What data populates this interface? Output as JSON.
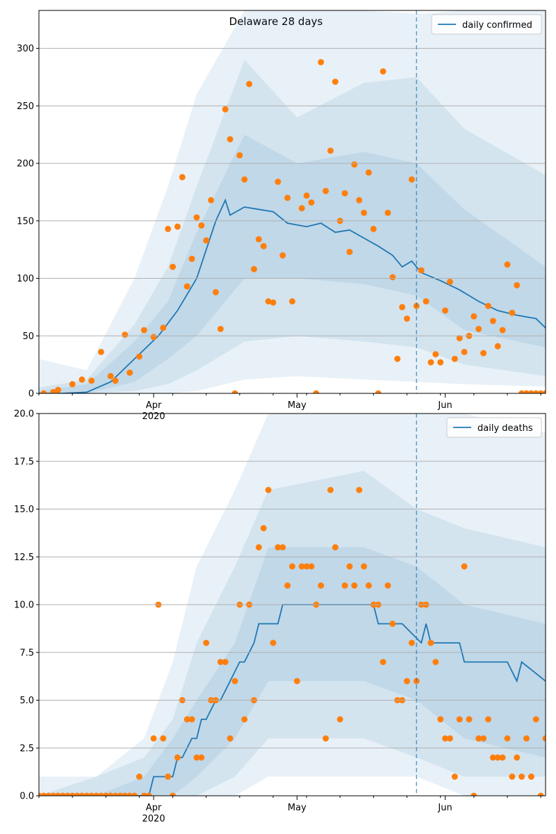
{
  "figure": {
    "title": "Delaware 28 days",
    "colors": {
      "line": "#1f77b4",
      "points": "#ff7f0e",
      "band": "#1f77b4",
      "grid": "#b0b0b0",
      "vline": "#1f77b4"
    }
  },
  "chart_data": [
    {
      "type": "line",
      "title": "Delaware 28 days",
      "series_name": "daily confirmed",
      "legend": "top-right",
      "grid": "horizontal",
      "x_range": [
        "2020-03-08",
        "2020-06-22"
      ],
      "ylim": [
        0,
        333
      ],
      "yticks": [
        0,
        50,
        100,
        150,
        200,
        250,
        300
      ],
      "ytick_labels": [
        "0",
        "50",
        "100",
        "150",
        "200",
        "250",
        "300"
      ],
      "xticks": [
        {
          "date": "2020-04-01",
          "label": "Apr",
          "sublabel": "2020"
        },
        {
          "date": "2020-05-01",
          "label": "May",
          "sublabel": ""
        },
        {
          "date": "2020-06-01",
          "label": "Jun",
          "sublabel": ""
        }
      ],
      "forecast_start": "2020-05-26",
      "line": {
        "x": [
          "2020-03-08",
          "2020-03-13",
          "2020-03-18",
          "2020-03-23",
          "2020-03-28",
          "2020-04-02",
          "2020-04-06",
          "2020-04-10",
          "2020-04-14",
          "2020-04-16",
          "2020-04-17",
          "2020-04-20",
          "2020-04-23",
          "2020-04-26",
          "2020-04-29",
          "2020-05-03",
          "2020-05-06",
          "2020-05-09",
          "2020-05-12",
          "2020-05-15",
          "2020-05-18",
          "2020-05-21",
          "2020-05-23",
          "2020-05-25",
          "2020-05-27",
          "2020-05-31",
          "2020-06-04",
          "2020-06-08",
          "2020-06-12",
          "2020-06-16",
          "2020-06-20",
          "2020-06-22"
        ],
        "y": [
          0,
          0,
          1,
          10,
          30,
          50,
          72,
          100,
          150,
          168,
          155,
          162,
          160,
          158,
          148,
          145,
          148,
          140,
          142,
          135,
          128,
          120,
          110,
          115,
          105,
          98,
          90,
          80,
          72,
          68,
          65,
          57
        ]
      },
      "bands": [
        {
          "level": "outer",
          "x": [
            "2020-03-08",
            "2020-03-18",
            "2020-03-28",
            "2020-04-04",
            "2020-04-10",
            "2020-04-20",
            "2020-05-01",
            "2020-05-15",
            "2020-05-26",
            "2020-06-05",
            "2020-06-22"
          ],
          "low": [
            0,
            0,
            0,
            0,
            2,
            12,
            15,
            12,
            10,
            8,
            6
          ],
          "high": [
            30,
            20,
            100,
            180,
            260,
            340,
            340,
            340,
            330,
            340,
            340
          ]
        },
        {
          "level": "middle",
          "x": [
            "2020-03-08",
            "2020-03-18",
            "2020-03-28",
            "2020-04-04",
            "2020-04-10",
            "2020-04-20",
            "2020-05-01",
            "2020-05-15",
            "2020-05-26",
            "2020-06-05",
            "2020-06-22"
          ],
          "low": [
            0,
            0,
            2,
            8,
            20,
            45,
            50,
            45,
            40,
            25,
            15
          ],
          "high": [
            5,
            12,
            60,
            110,
            180,
            290,
            240,
            270,
            275,
            230,
            190
          ]
        },
        {
          "level": "inner",
          "x": [
            "2020-03-08",
            "2020-03-18",
            "2020-03-28",
            "2020-04-04",
            "2020-04-10",
            "2020-04-20",
            "2020-05-01",
            "2020-05-15",
            "2020-05-26",
            "2020-06-05",
            "2020-06-22"
          ],
          "low": [
            0,
            0,
            10,
            30,
            50,
            100,
            100,
            95,
            85,
            55,
            40
          ],
          "high": [
            2,
            8,
            45,
            80,
            140,
            225,
            200,
            210,
            200,
            160,
            110
          ]
        }
      ],
      "observed": {
        "x": [
          "2020-03-09",
          "2020-03-11",
          "2020-03-12",
          "2020-03-15",
          "2020-03-17",
          "2020-03-19",
          "2020-03-21",
          "2020-03-23",
          "2020-03-24",
          "2020-03-26",
          "2020-03-27",
          "2020-03-29",
          "2020-03-30",
          "2020-04-01",
          "2020-04-03",
          "2020-04-04",
          "2020-04-05",
          "2020-04-06",
          "2020-04-07",
          "2020-04-08",
          "2020-04-09",
          "2020-04-10",
          "2020-04-11",
          "2020-04-12",
          "2020-04-13",
          "2020-04-14",
          "2020-04-15",
          "2020-04-16",
          "2020-04-17",
          "2020-04-18",
          "2020-04-19",
          "2020-04-20",
          "2020-04-21",
          "2020-04-22",
          "2020-04-23",
          "2020-04-24",
          "2020-04-25",
          "2020-04-26",
          "2020-04-27",
          "2020-04-28",
          "2020-04-29",
          "2020-04-30",
          "2020-05-02",
          "2020-05-03",
          "2020-05-04",
          "2020-05-05",
          "2020-05-06",
          "2020-05-07",
          "2020-05-08",
          "2020-05-09",
          "2020-05-10",
          "2020-05-11",
          "2020-05-12",
          "2020-05-13",
          "2020-05-14",
          "2020-05-15",
          "2020-05-16",
          "2020-05-17",
          "2020-05-18",
          "2020-05-19",
          "2020-05-20",
          "2020-05-21",
          "2020-05-22",
          "2020-05-23",
          "2020-05-24",
          "2020-05-25",
          "2020-05-26",
          "2020-05-27",
          "2020-05-28",
          "2020-05-29",
          "2020-05-30",
          "2020-05-31",
          "2020-06-01",
          "2020-06-02",
          "2020-06-03",
          "2020-06-04",
          "2020-06-05",
          "2020-06-06",
          "2020-06-07",
          "2020-06-08",
          "2020-06-09",
          "2020-06-10",
          "2020-06-11",
          "2020-06-12",
          "2020-06-13",
          "2020-06-14",
          "2020-06-15",
          "2020-06-16",
          "2020-06-17",
          "2020-06-18",
          "2020-06-19",
          "2020-06-20",
          "2020-06-21",
          "2020-06-22"
        ],
        "y": [
          0,
          1,
          3,
          8,
          12,
          11,
          36,
          15,
          11,
          51,
          18,
          32,
          55,
          49,
          57,
          143,
          110,
          145,
          188,
          93,
          117,
          153,
          146,
          133,
          168,
          88,
          56,
          247,
          221,
          0,
          207,
          186,
          269,
          108,
          134,
          128,
          80,
          79,
          184,
          120,
          170,
          80,
          161,
          172,
          166,
          0,
          288,
          176,
          211,
          271,
          150,
          174,
          123,
          199,
          168,
          157,
          192,
          143,
          0,
          280,
          157,
          101,
          30,
          75,
          65,
          186,
          76,
          107,
          80,
          27,
          34,
          27,
          72,
          97,
          30,
          48,
          36,
          50,
          67,
          56,
          35,
          76,
          63,
          41,
          55,
          112,
          70,
          94,
          0,
          0,
          0,
          0,
          0,
          0
        ]
      }
    },
    {
      "type": "line",
      "title": "",
      "series_name": "daily deaths",
      "legend": "top-right",
      "grid": "horizontal",
      "x_range": [
        "2020-03-08",
        "2020-06-22"
      ],
      "ylim": [
        0,
        20
      ],
      "yticks": [
        0,
        2.5,
        5,
        7.5,
        10,
        12.5,
        15,
        17.5,
        20
      ],
      "ytick_labels": [
        "0.0",
        "2.5",
        "5.0",
        "7.5",
        "10.0",
        "12.5",
        "15.0",
        "17.5",
        "20.0"
      ],
      "xticks": [
        {
          "date": "2020-04-01",
          "label": "Apr",
          "sublabel": "2020"
        },
        {
          "date": "2020-05-01",
          "label": "May",
          "sublabel": ""
        },
        {
          "date": "2020-06-01",
          "label": "Jun",
          "sublabel": ""
        }
      ],
      "forecast_start": "2020-05-26",
      "line": {
        "x": [
          "2020-03-08",
          "2020-03-31",
          "2020-04-01",
          "2020-04-05",
          "2020-04-06",
          "2020-04-07",
          "2020-04-09",
          "2020-04-10",
          "2020-04-11",
          "2020-04-12",
          "2020-04-14",
          "2020-04-15",
          "2020-04-17",
          "2020-04-19",
          "2020-04-20",
          "2020-04-22",
          "2020-04-23",
          "2020-04-27",
          "2020-04-28",
          "2020-05-17",
          "2020-05-18",
          "2020-05-23",
          "2020-05-27",
          "2020-05-28",
          "2020-05-29",
          "2020-05-30",
          "2020-06-01",
          "2020-06-04",
          "2020-06-05",
          "2020-06-14",
          "2020-06-16",
          "2020-06-17",
          "2020-06-22"
        ],
        "y": [
          0,
          0,
          1,
          1,
          2,
          2,
          3,
          3,
          4,
          4,
          5,
          5,
          6,
          7,
          7,
          8,
          9,
          9,
          10,
          10,
          9,
          9,
          8,
          9,
          8,
          8,
          8,
          8,
          7,
          7,
          6,
          7,
          6
        ]
      },
      "bands": [
        {
          "level": "outer",
          "x": [
            "2020-03-08",
            "2020-03-20",
            "2020-03-30",
            "2020-04-05",
            "2020-04-10",
            "2020-04-18",
            "2020-04-25",
            "2020-05-15",
            "2020-05-26",
            "2020-06-05",
            "2020-06-22"
          ],
          "low": [
            0,
            0,
            0,
            0,
            0,
            0,
            1,
            1,
            1,
            0,
            0
          ],
          "high": [
            1,
            1,
            3,
            7,
            12,
            16,
            20,
            21,
            20,
            20,
            19
          ]
        },
        {
          "level": "middle",
          "x": [
            "2020-03-08",
            "2020-03-20",
            "2020-03-30",
            "2020-04-05",
            "2020-04-10",
            "2020-04-18",
            "2020-04-25",
            "2020-05-15",
            "2020-05-26",
            "2020-06-05",
            "2020-06-22"
          ],
          "low": [
            0,
            0,
            0,
            0,
            0,
            1,
            3,
            3,
            2,
            1,
            1
          ],
          "high": [
            0,
            1,
            2,
            4,
            8,
            12,
            16,
            17,
            15,
            14,
            13
          ]
        },
        {
          "level": "inner",
          "x": [
            "2020-03-08",
            "2020-03-20",
            "2020-03-30",
            "2020-04-05",
            "2020-04-10",
            "2020-04-18",
            "2020-04-25",
            "2020-05-15",
            "2020-05-26",
            "2020-06-05",
            "2020-06-22"
          ],
          "low": [
            0,
            0,
            0,
            0,
            1,
            3,
            6,
            6,
            5,
            3,
            2
          ],
          "high": [
            0,
            0,
            1,
            3,
            5,
            8,
            13,
            13,
            12,
            10,
            9
          ]
        }
      ],
      "observed": {
        "x": [
          "2020-03-08",
          "2020-03-09",
          "2020-03-10",
          "2020-03-11",
          "2020-03-12",
          "2020-03-13",
          "2020-03-14",
          "2020-03-15",
          "2020-03-16",
          "2020-03-17",
          "2020-03-18",
          "2020-03-19",
          "2020-03-20",
          "2020-03-21",
          "2020-03-22",
          "2020-03-23",
          "2020-03-24",
          "2020-03-25",
          "2020-03-26",
          "2020-03-27",
          "2020-03-28",
          "2020-03-29",
          "2020-03-30",
          "2020-03-31",
          "2020-04-01",
          "2020-04-02",
          "2020-04-03",
          "2020-04-04",
          "2020-04-05",
          "2020-04-06",
          "2020-04-07",
          "2020-04-08",
          "2020-04-09",
          "2020-04-10",
          "2020-04-11",
          "2020-04-12",
          "2020-04-13",
          "2020-04-14",
          "2020-04-15",
          "2020-04-16",
          "2020-04-17",
          "2020-04-18",
          "2020-04-19",
          "2020-04-20",
          "2020-04-21",
          "2020-04-22",
          "2020-04-23",
          "2020-04-24",
          "2020-04-25",
          "2020-04-26",
          "2020-04-27",
          "2020-04-28",
          "2020-04-29",
          "2020-04-30",
          "2020-05-01",
          "2020-05-02",
          "2020-05-03",
          "2020-05-04",
          "2020-05-05",
          "2020-05-06",
          "2020-05-07",
          "2020-05-08",
          "2020-05-09",
          "2020-05-10",
          "2020-05-11",
          "2020-05-12",
          "2020-05-13",
          "2020-05-14",
          "2020-05-15",
          "2020-05-16",
          "2020-05-17",
          "2020-05-18",
          "2020-05-19",
          "2020-05-20",
          "2020-05-21",
          "2020-05-22",
          "2020-05-23",
          "2020-05-24",
          "2020-05-25",
          "2020-05-26",
          "2020-05-27",
          "2020-05-28",
          "2020-05-29",
          "2020-05-30",
          "2020-05-31",
          "2020-06-01",
          "2020-06-02",
          "2020-06-03",
          "2020-06-04",
          "2020-06-05",
          "2020-06-06",
          "2020-06-07",
          "2020-06-08",
          "2020-06-09",
          "2020-06-10",
          "2020-06-11",
          "2020-06-12",
          "2020-06-13",
          "2020-06-14",
          "2020-06-15",
          "2020-06-16",
          "2020-06-17",
          "2020-06-18",
          "2020-06-19",
          "2020-06-20",
          "2020-06-21",
          "2020-06-22"
        ],
        "y": [
          0,
          0,
          0,
          0,
          0,
          0,
          0,
          0,
          0,
          0,
          0,
          0,
          0,
          0,
          0,
          0,
          0,
          0,
          0,
          0,
          0,
          1,
          0,
          0,
          3,
          10,
          3,
          1,
          0,
          2,
          5,
          4,
          4,
          2,
          2,
          8,
          5,
          5,
          7,
          7,
          3,
          6,
          10,
          4,
          10,
          5,
          13,
          14,
          16,
          8,
          13,
          13,
          11,
          12,
          6,
          12,
          12,
          12,
          10,
          11,
          3,
          16,
          13,
          4,
          11,
          12,
          11,
          16,
          12,
          11,
          10,
          10,
          7,
          11,
          9,
          5,
          5,
          6,
          8,
          6,
          10,
          10,
          8,
          7,
          4,
          3,
          3,
          1,
          4,
          12,
          4,
          0,
          3,
          3,
          4,
          2,
          2,
          2,
          3,
          1,
          2,
          1,
          3,
          1,
          4,
          0,
          3
        ]
      }
    }
  ]
}
